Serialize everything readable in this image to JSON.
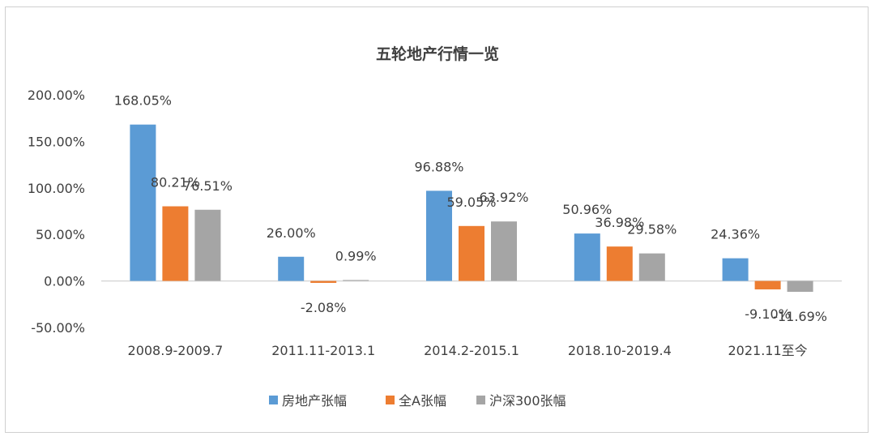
{
  "chart_data": {
    "type": "bar",
    "title": "五轮地产行情一览",
    "categories": [
      "2008.9-2009.7",
      "2011.11-2013.1",
      "2014.2-2015.1",
      "2018.10-2019.4",
      "2021.11至今"
    ],
    "series": [
      {
        "name": "房地产张幅",
        "color": "#5b9bd5",
        "values": [
          168.05,
          26.0,
          96.88,
          50.96,
          24.36
        ],
        "labels": [
          "168.05%",
          "26.00%",
          "96.88%",
          "50.96%",
          "24.36%"
        ]
      },
      {
        "name": "全A张幅",
        "color": "#ed7d31",
        "values": [
          80.21,
          -2.08,
          59.05,
          36.98,
          -9.1
        ],
        "labels": [
          "80.21%",
          "-2.08%",
          "59.05%",
          "36.98%",
          "-9.10%"
        ]
      },
      {
        "name": "沪深300张幅",
        "color": "#a5a5a5",
        "values": [
          76.51,
          0.99,
          63.92,
          29.58,
          -11.69
        ],
        "labels": [
          "76.51%",
          "0.99%",
          "63.92%",
          "29.58%",
          "-11.69%"
        ]
      }
    ],
    "yticks": [
      "200.00%",
      "150.00%",
      "100.00%",
      "50.00%",
      "0.00%",
      "-50.00%"
    ],
    "ylim": [
      -50,
      200
    ],
    "grid": false,
    "legend_position": "bottom"
  }
}
